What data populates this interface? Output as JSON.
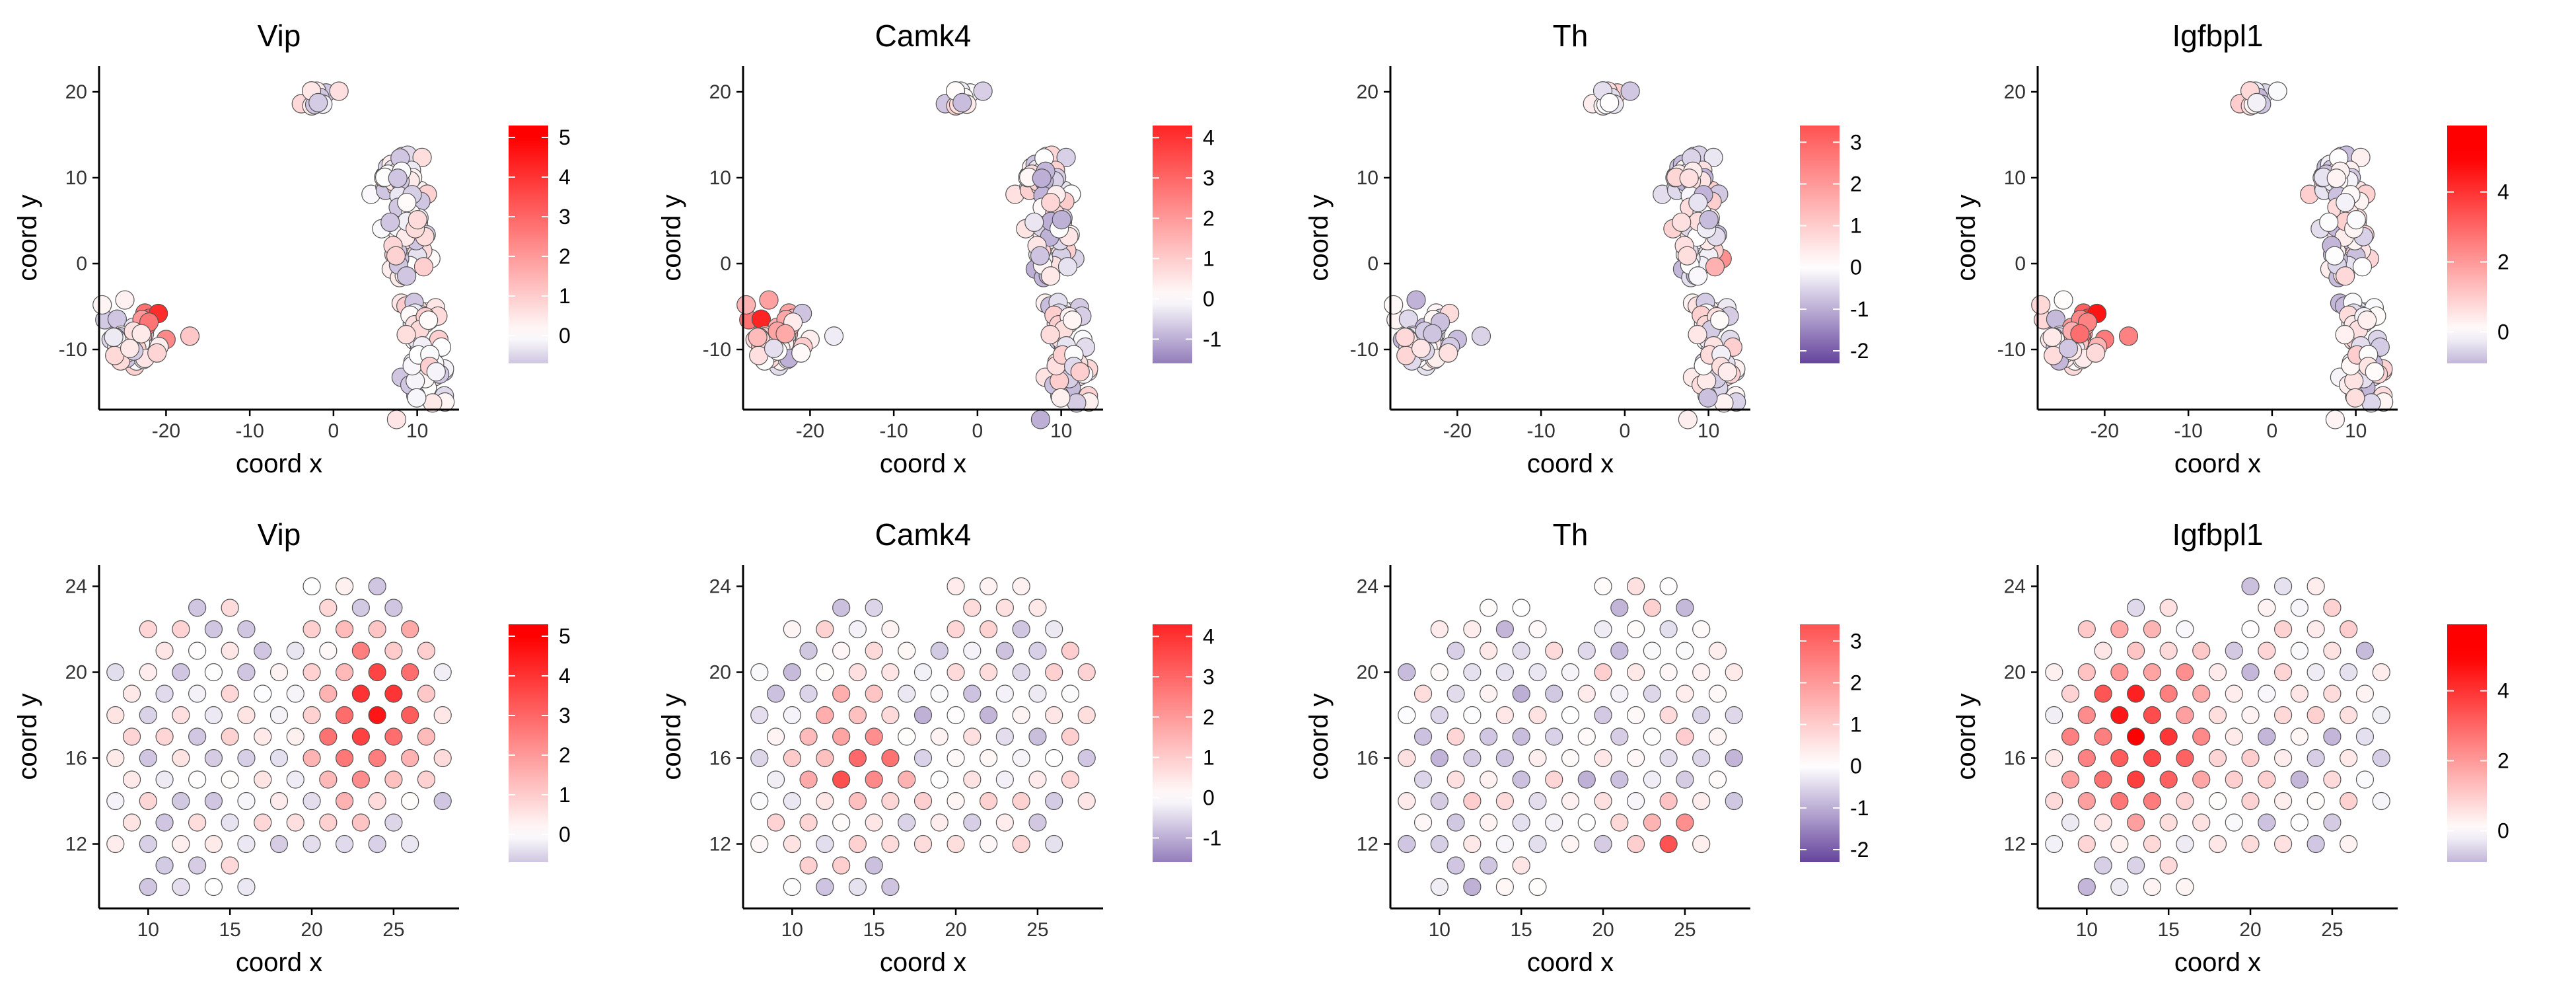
{
  "figure": {
    "rows": [
      "umap",
      "spatial"
    ],
    "panels": [
      "Vip",
      "Camk4",
      "Th",
      "Igfbpl1"
    ]
  },
  "chart_data": [
    {
      "type": "scatter",
      "title": "Vip",
      "xlabel": "coord x",
      "ylabel": "coord y",
      "row": "umap",
      "xlim": [
        -28,
        15
      ],
      "ylim": [
        -17,
        23
      ],
      "xticks": [
        -20,
        -10,
        0,
        10
      ],
      "yticks": [
        -10,
        0,
        10,
        20
      ],
      "colorbar": {
        "ticks": [
          0,
          1,
          2,
          3,
          4,
          5
        ],
        "range": [
          -0.7,
          5.3
        ]
      },
      "expr_range": [
        -0.7,
        5.3
      ],
      "hotspot": [
        -19.5,
        -5.8
      ],
      "grid": false,
      "legend": "right"
    },
    {
      "type": "scatter",
      "title": "Camk4",
      "xlabel": "coord x",
      "ylabel": "coord y",
      "row": "umap",
      "xlim": [
        -28,
        15
      ],
      "ylim": [
        -17,
        23
      ],
      "xticks": [
        -20,
        -10,
        0,
        10
      ],
      "yticks": [
        -10,
        0,
        10,
        20
      ],
      "colorbar": {
        "ticks": [
          -1,
          0,
          1,
          2,
          3,
          4
        ],
        "range": [
          -1.6,
          4.3
        ]
      },
      "expr_range": [
        -1.6,
        4.3
      ],
      "hotspot": [
        -25.5,
        -6
      ],
      "grid": false,
      "legend": "right"
    },
    {
      "type": "scatter",
      "title": "Th",
      "xlabel": "coord x",
      "ylabel": "coord y",
      "row": "umap",
      "xlim": [
        -28,
        15
      ],
      "ylim": [
        -17,
        23
      ],
      "xticks": [
        -20,
        -10,
        0,
        10
      ],
      "yticks": [
        -10,
        0,
        10,
        20
      ],
      "colorbar": {
        "ticks": [
          -2,
          -1,
          0,
          1,
          2,
          3
        ],
        "range": [
          -2.3,
          3.4
        ]
      },
      "expr_range": [
        -2.3,
        3.4
      ],
      "hotspot": [
        12,
        -1
      ],
      "grid": false,
      "legend": "right"
    },
    {
      "type": "scatter",
      "title": "Igfbpl1",
      "xlabel": "coord x",
      "ylabel": "coord y",
      "row": "umap",
      "xlim": [
        -28,
        15
      ],
      "ylim": [
        -17,
        23
      ],
      "xticks": [
        -20,
        -10,
        0,
        10
      ],
      "yticks": [
        -10,
        0,
        10,
        20
      ],
      "colorbar": {
        "ticks": [
          0,
          2,
          4
        ],
        "range": [
          -0.9,
          5.9
        ]
      },
      "expr_range": [
        -0.9,
        5.9
      ],
      "hotspot": [
        -19.5,
        -6.5
      ],
      "grid": false,
      "legend": "right"
    },
    {
      "type": "scatter",
      "title": "Vip",
      "xlabel": "coord x",
      "ylabel": "coord y",
      "row": "spatial",
      "xlim": [
        7,
        29
      ],
      "ylim": [
        9,
        25
      ],
      "xticks": [
        10,
        15,
        20,
        25
      ],
      "yticks": [
        12,
        16,
        20,
        24
      ],
      "colorbar": {
        "ticks": [
          0,
          1,
          2,
          3,
          4,
          5
        ],
        "range": [
          -0.7,
          5.3
        ]
      },
      "expr_range": [
        -0.7,
        5.3
      ],
      "hotspot": [
        24,
        18
      ],
      "grid": false,
      "legend": "right"
    },
    {
      "type": "scatter",
      "title": "Camk4",
      "xlabel": "coord x",
      "ylabel": "coord y",
      "row": "spatial",
      "xlim": [
        7,
        29
      ],
      "ylim": [
        9,
        25
      ],
      "xticks": [
        10,
        15,
        20,
        25
      ],
      "yticks": [
        12,
        16,
        20,
        24
      ],
      "colorbar": {
        "ticks": [
          -1,
          0,
          1,
          2,
          3,
          4
        ],
        "range": [
          -1.6,
          4.3
        ]
      },
      "expr_range": [
        -1.6,
        4.3
      ],
      "hotspot": [
        14,
        16
      ],
      "grid": false,
      "legend": "right"
    },
    {
      "type": "scatter",
      "title": "Th",
      "xlabel": "coord x",
      "ylabel": "coord y",
      "row": "spatial",
      "xlim": [
        7,
        29
      ],
      "ylim": [
        9,
        25
      ],
      "xticks": [
        10,
        15,
        20,
        25
      ],
      "yticks": [
        12,
        16,
        20,
        24
      ],
      "colorbar": {
        "ticks": [
          -2,
          -1,
          0,
          1,
          2,
          3
        ],
        "range": [
          -2.3,
          3.4
        ]
      },
      "expr_range": [
        -2.3,
        3.4
      ],
      "hotspot": [
        24,
        12
      ],
      "grid": false,
      "legend": "right"
    },
    {
      "type": "scatter",
      "title": "Igfbpl1",
      "xlabel": "coord x",
      "ylabel": "coord y",
      "row": "spatial",
      "xlim": [
        7,
        29
      ],
      "ylim": [
        9,
        25
      ],
      "xticks": [
        10,
        15,
        20,
        25
      ],
      "yticks": [
        12,
        16,
        20,
        24
      ],
      "colorbar": {
        "ticks": [
          0,
          2,
          4
        ],
        "range": [
          -0.9,
          5.9
        ]
      },
      "expr_range": [
        -0.9,
        5.9
      ],
      "hotspot": [
        13,
        17
      ],
      "grid": false,
      "legend": "right"
    }
  ],
  "colors": {
    "low": "#5e3c99",
    "mid": "#ffffff",
    "high": "#ff0000",
    "point_stroke": "#555555",
    "axis": "#000000"
  }
}
